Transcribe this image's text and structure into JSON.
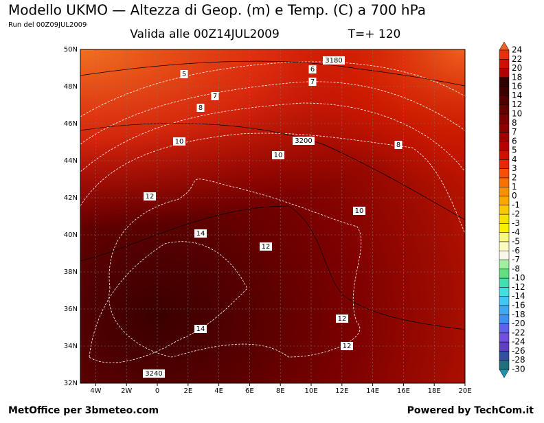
{
  "header": {
    "title": "Modello UKMO — Altezza di Geop. (m) e Temp. (C) a 700 hPa",
    "run": "Run del 00Z09JUL2009",
    "valid": "Valida alle 00Z14JUL2009",
    "lead": "T=+ 120"
  },
  "map": {
    "lat_labels": [
      "50N",
      "48N",
      "46N",
      "44N",
      "42N",
      "40N",
      "38N",
      "36N",
      "34N",
      "32N"
    ],
    "lon_labels": [
      "4W",
      "2W",
      "0",
      "2E",
      "4E",
      "6E",
      "8E",
      "10E",
      "12E",
      "14E",
      "16E",
      "18E",
      "20E"
    ],
    "contour_labels": [
      "3180",
      "6",
      "5",
      "7",
      "7",
      "8",
      "10",
      "3200",
      "8",
      "10",
      "12",
      "10",
      "14",
      "12",
      "12",
      "14",
      "12",
      "3240"
    ]
  },
  "colorbar": {
    "labels": [
      "24",
      "22",
      "20",
      "18",
      "16",
      "14",
      "12",
      "10",
      "8",
      "7",
      "6",
      "5",
      "4",
      "3",
      "2",
      "1",
      "0",
      "-1",
      "-2",
      "-3",
      "-4",
      "-5",
      "-6",
      "-7",
      "-8",
      "-10",
      "-12",
      "-14",
      "-16",
      "-18",
      "-20",
      "-22",
      "-24",
      "-26",
      "-28",
      "-30"
    ],
    "colors": [
      "#f06020",
      "#e83010",
      "#d01000",
      "#b00000",
      "#300000",
      "#3c0000",
      "#500000",
      "#640000",
      "#780000",
      "#8c0000",
      "#a00000",
      "#b80000",
      "#d01000",
      "#e82800",
      "#f85000",
      "#f87000",
      "#f89000",
      "#f8a800",
      "#f8c800",
      "#f8e000",
      "#f8f000",
      "#f8f880",
      "#fcfcc0",
      "#f8f8e8",
      "#a0f0a0",
      "#60e080",
      "#40e0b0",
      "#40e0e0",
      "#40c8f0",
      "#40a8f0",
      "#4090f0",
      "#6060f0",
      "#7050e0",
      "#6040c0",
      "#3050a0",
      "#207080",
      "#2090b0"
    ]
  },
  "footer": {
    "left": "MetOffice per 3bmeteo.com",
    "right": "Powered by TechCom.it"
  }
}
